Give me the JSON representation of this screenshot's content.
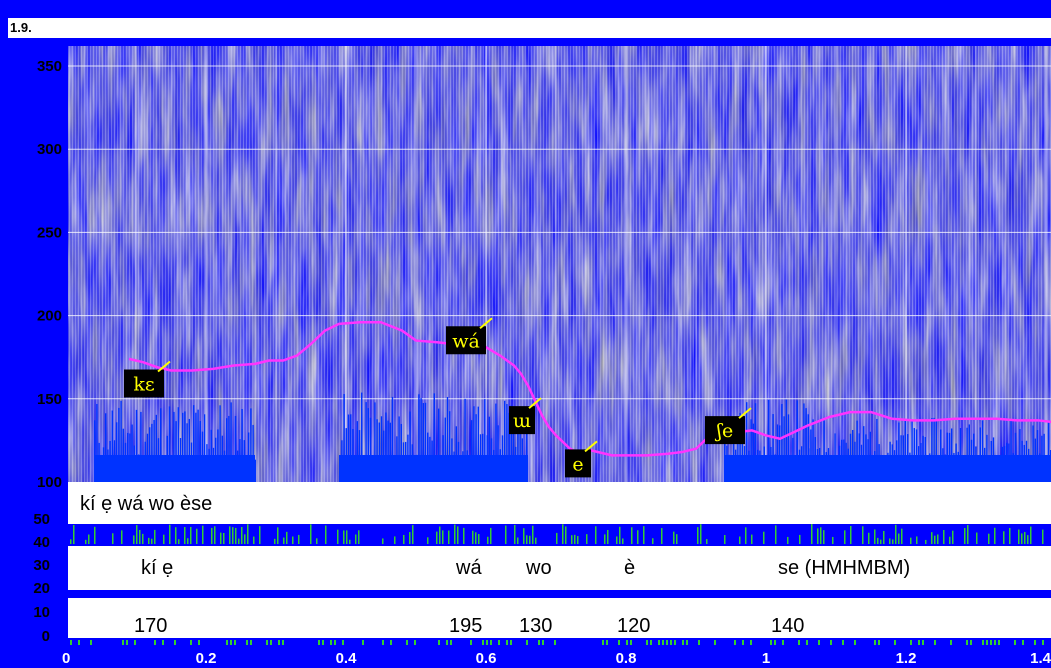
{
  "window": {
    "title": "1.9."
  },
  "colors": {
    "frame": "#0000ff",
    "pitch": "#ff33ff",
    "waveform": "#0033ff",
    "energy": "#33cc33",
    "label_text": "#ffff00"
  },
  "chart_data": {
    "type": "line",
    "background": "spectrogram",
    "xlim": [
      0,
      1.4
    ],
    "ylim": [
      100,
      360
    ],
    "x_ticks": [
      "0",
      "0.2",
      "0.4",
      "0.6",
      "0.8",
      "1",
      "1.2",
      "1.4"
    ],
    "y_ticks": [
      "350",
      "300",
      "250",
      "200",
      "150",
      "100"
    ],
    "lower_y_ticks": [
      "50",
      "40",
      "30",
      "20",
      "10",
      "0"
    ],
    "grid": true,
    "series": [
      {
        "x": [
          0.09,
          0.11,
          0.13,
          0.15,
          0.18,
          0.21,
          0.24,
          0.27,
          0.29,
          0.31,
          0.33,
          0.35,
          0.37,
          0.39,
          0.42,
          0.45,
          0.48,
          0.5,
          0.53,
          0.55,
          0.57,
          0.6,
          0.62,
          0.64,
          0.65,
          0.66,
          0.67,
          0.68,
          0.69,
          0.7,
          0.71,
          0.72,
          0.73,
          0.75,
          0.78,
          0.8,
          0.83,
          0.86,
          0.88,
          0.9,
          0.92,
          0.94,
          0.96,
          0.98,
          1.0,
          1.02,
          1.04,
          1.06,
          1.09,
          1.12,
          1.15,
          1.18,
          1.21,
          1.24,
          1.27,
          1.3,
          1.33,
          1.36,
          1.39,
          1.41
        ],
        "y": [
          174,
          172,
          169,
          167,
          167,
          168,
          170,
          171,
          173,
          173,
          176,
          183,
          191,
          195,
          196,
          196,
          191,
          185,
          184,
          183,
          182,
          181,
          176,
          170,
          165,
          158,
          149,
          140,
          133,
          128,
          124,
          120,
          118,
          119,
          116,
          116,
          116,
          117,
          118,
          120,
          128,
          133,
          130,
          131,
          128,
          126,
          130,
          134,
          139,
          142,
          142,
          138,
          137,
          137,
          138,
          138,
          138,
          137,
          137,
          136
        ]
      }
    ],
    "annotations": [
      {
        "text": "kε",
        "x": 0.1,
        "y": 170
      },
      {
        "text": "wá",
        "x": 0.56,
        "y": 196
      },
      {
        "text": "ɯ",
        "x": 0.64,
        "y": 148
      },
      {
        "text": "e",
        "x": 0.72,
        "y": 122
      },
      {
        "text": "ʃe",
        "x": 0.93,
        "y": 142
      }
    ],
    "rows": [
      {
        "items": [
          {
            "text": "kí ẹ wá wo èse",
            "x": 0.0
          }
        ]
      },
      {
        "items": [
          {
            "text": "kí ẹ",
            "x": 0.05
          },
          {
            "text": "wá",
            "x": 0.5
          },
          {
            "text": "wo",
            "x": 0.6
          },
          {
            "text": "è",
            "x": 0.74
          },
          {
            "text": "se (HMHMBM)",
            "x": 0.96
          }
        ]
      },
      {
        "items": [
          {
            "text": "170",
            "x": 0.04
          },
          {
            "text": "195",
            "x": 0.49
          },
          {
            "text": "130",
            "x": 0.59
          },
          {
            "text": "120",
            "x": 0.73
          },
          {
            "text": "140",
            "x": 0.95
          }
        ]
      }
    ]
  }
}
